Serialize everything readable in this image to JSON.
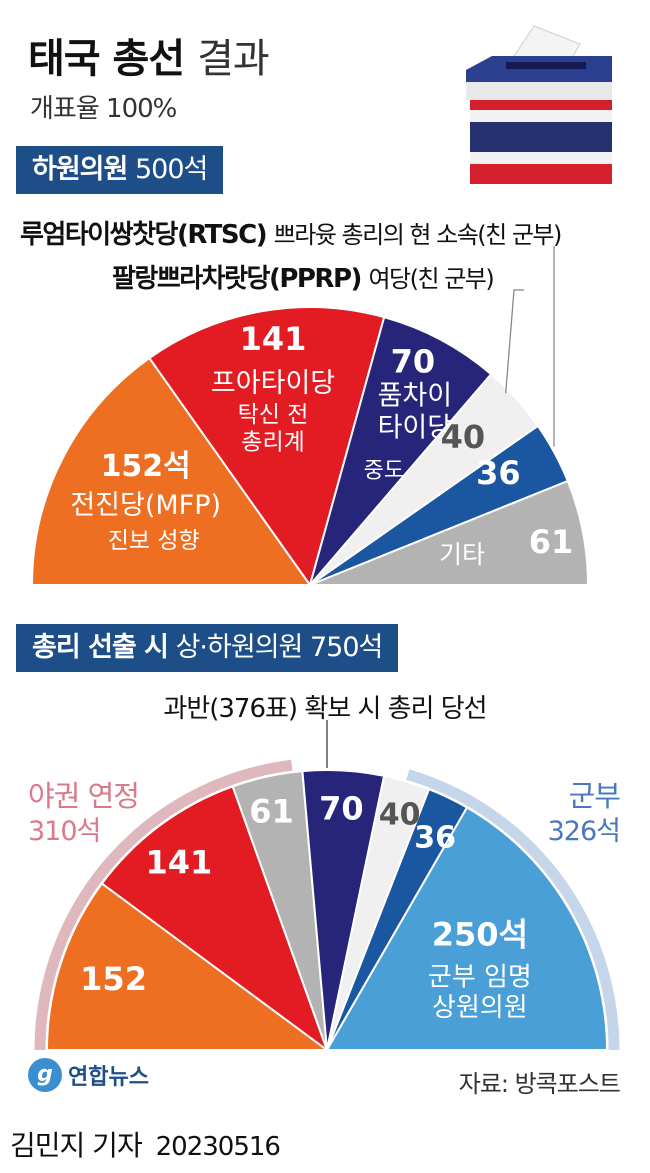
{
  "title": {
    "bold": "태국 총선",
    "light": "결과"
  },
  "subtitle": "개표율 100%",
  "house_box": {
    "label": "하원의원",
    "seats": "500석"
  },
  "party_notes": [
    {
      "name": "루엄타이쌍찻당(RTSC)",
      "desc": "쁘라윳 총리의 현 소속(친 군부)"
    },
    {
      "name": "팔랑쁘라차랏당(PPRP)",
      "desc": "여당(친 군부)"
    }
  ],
  "pm_box": {
    "label": "총리 선출 시",
    "detail": "상·하원의원 750석"
  },
  "majority_note": "과반(376표) 확보 시 총리 당선",
  "bloc_left": {
    "name": "야권 연정",
    "seats": "310석"
  },
  "bloc_right": {
    "name": "군부",
    "seats": "326석"
  },
  "logo": {
    "text": "연합뉴스",
    "mark": "g"
  },
  "source": "자료: 방콕포스트",
  "byline": {
    "author": "김민지 기자",
    "date": "20230516"
  },
  "colors": {
    "mfp": "#ee6f22",
    "pheu_thai": "#e31b23",
    "bhumjaithai": "#26257a",
    "pprp": "#f0f0f0",
    "rtsc": "#1b56a0",
    "others": "#b3b3b3",
    "senate": "#4a9fd6",
    "section_bg": "#1d4e87",
    "opposition_arc": "#dfb8be",
    "military_arc": "#c6d6ea"
  },
  "chart_data": [
    {
      "type": "pie",
      "title": "하원의원 500석",
      "slices": [
        {
          "label": "152석",
          "name": "전진당(MFP)",
          "sub": "진보 성향",
          "value": 152,
          "color": "#ee6f22"
        },
        {
          "label": "141",
          "name": "프아타이당",
          "sub": "탁신 전 총리계",
          "sub_lines": [
            "탁신 전",
            "총리계"
          ],
          "value": 141,
          "color": "#e31b23"
        },
        {
          "label": "70",
          "name": "품차이 타이당",
          "name_lines": [
            "품차이",
            "타이당"
          ],
          "sub": "중도",
          "value": 70,
          "color": "#26257a"
        },
        {
          "label": "40",
          "value": 40,
          "color": "#f0f0f0"
        },
        {
          "label": "36",
          "value": 36,
          "color": "#1b56a0"
        },
        {
          "label": "61",
          "name": "기타",
          "value": 61,
          "color": "#b3b3b3"
        }
      ]
    },
    {
      "type": "pie",
      "title": "총리 선출 시 상·하원의원 750석",
      "slices": [
        {
          "label": "152",
          "value": 152,
          "color": "#ee6f22"
        },
        {
          "label": "141",
          "value": 141,
          "color": "#e31b23"
        },
        {
          "label": "61",
          "value": 61,
          "color": "#b3b3b3"
        },
        {
          "label": "70",
          "value": 70,
          "color": "#26257a"
        },
        {
          "label": "40",
          "value": 40,
          "color": "#f0f0f0"
        },
        {
          "label": "36",
          "value": 36,
          "color": "#1b56a0"
        },
        {
          "label": "250석",
          "name": "군부 임명 상원의원",
          "name_lines": [
            "군부 임명",
            "상원의원"
          ],
          "value": 250,
          "color": "#4a9fd6"
        }
      ]
    }
  ]
}
